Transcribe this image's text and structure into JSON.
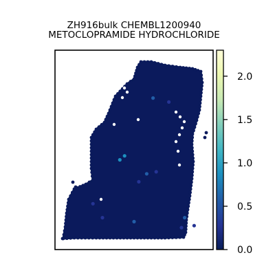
{
  "chart_data": {
    "type": "scatter",
    "title_line1": "ZH916bulk CHEMBL1200940",
    "title_line2": "METOCLOPRAMIDE HYDROCHLORIDE",
    "xlabel": "",
    "ylabel": "",
    "grid": false,
    "legend": "none",
    "colorbar": {
      "colormap": "YlGnBu",
      "range": [
        0.0,
        2.3
      ],
      "ticks": [
        0.0,
        0.5,
        1.0,
        1.5,
        2.0
      ],
      "tick_labels": [
        "0.0",
        "0.5",
        "1.0",
        "1.5",
        "2.0"
      ]
    },
    "background_value": 0.0,
    "highlighted_spots": [
      {
        "x": 0.62,
        "y": 0.24,
        "value": 0.6
      },
      {
        "x": 0.72,
        "y": 0.26,
        "value": 0.4
      },
      {
        "x": 0.41,
        "y": 0.55,
        "value": 0.9
      },
      {
        "x": 0.44,
        "y": 0.53,
        "value": 0.8
      },
      {
        "x": 0.58,
        "y": 0.62,
        "value": 0.5
      },
      {
        "x": 0.64,
        "y": 0.61,
        "value": 0.4
      },
      {
        "x": 0.53,
        "y": 0.66,
        "value": 0.3
      },
      {
        "x": 0.24,
        "y": 0.77,
        "value": 0.3
      },
      {
        "x": 0.5,
        "y": 0.86,
        "value": 0.6
      },
      {
        "x": 0.82,
        "y": 0.84,
        "value": 0.5
      },
      {
        "x": 0.8,
        "y": 0.89,
        "value": 0.4
      },
      {
        "x": 0.3,
        "y": 0.84,
        "value": 0.3
      },
      {
        "x": 0.88,
        "y": 0.88,
        "value": 0.4
      }
    ]
  }
}
